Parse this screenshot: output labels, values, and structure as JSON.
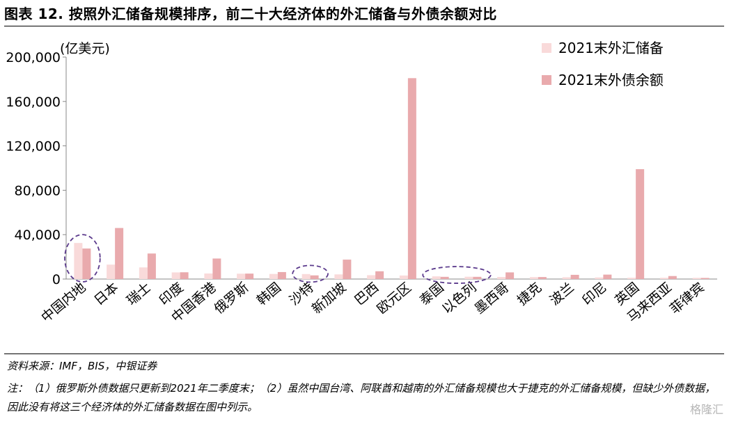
{
  "title": "图表 12. 按照外汇储备规模排序，前二十大经济体的外汇储备与外债余额对比",
  "source": "资料来源：IMF，BIS，中银证券",
  "note": "注：（1）俄罗斯外债数据只更新到2021年二季度末；（2）虽然中国台湾、阿联酋和越南的外汇储备规模也大于捷克的外汇储备规模，但缺少外债数据，因此没有将这三个经济体的外汇储备数据在图中列示。",
  "watermark": "格隆汇",
  "colors": {
    "reserves": "#f9dada",
    "debt": "#e9aaad",
    "highlight": "#5b3a8c",
    "axis": "#888888"
  },
  "chart_data": {
    "type": "bar",
    "ylabel": "(亿美元)",
    "ylim": [
      0,
      200000
    ],
    "yticks": [
      0,
      40000,
      80000,
      120000,
      160000,
      200000
    ],
    "ytick_labels": [
      "0",
      "40,000",
      "80,000",
      "120,000",
      "160,000",
      "200,000"
    ],
    "grid": false,
    "legend": "top-right",
    "categories": [
      "中国内地",
      "日本",
      "瑞士",
      "印度",
      "中国香港",
      "俄罗斯",
      "韩国",
      "沙特",
      "新加坡",
      "巴西",
      "欧元区",
      "泰国",
      "以色列",
      "墨西哥",
      "捷克",
      "波兰",
      "印尼",
      "英国",
      "马来西亚",
      "菲律宾"
    ],
    "series": [
      {
        "name": "2021末外汇储备",
        "values": [
          32500,
          13000,
          10500,
          6000,
          5000,
          4800,
          4600,
          4500,
          4200,
          3500,
          3200,
          2400,
          2100,
          1900,
          1750,
          1600,
          1450,
          1200,
          1150,
          1100
        ]
      },
      {
        "name": "2021末外债余额",
        "values": [
          27500,
          46000,
          23000,
          6100,
          18500,
          4900,
          6300,
          3300,
          17500,
          7000,
          181000,
          2000,
          2000,
          6000,
          1800,
          3800,
          4000,
          99000,
          2700,
          1000
        ]
      }
    ],
    "highlight_groups": [
      [
        0,
        0
      ],
      [
        7,
        7
      ],
      [
        11,
        12
      ]
    ]
  }
}
